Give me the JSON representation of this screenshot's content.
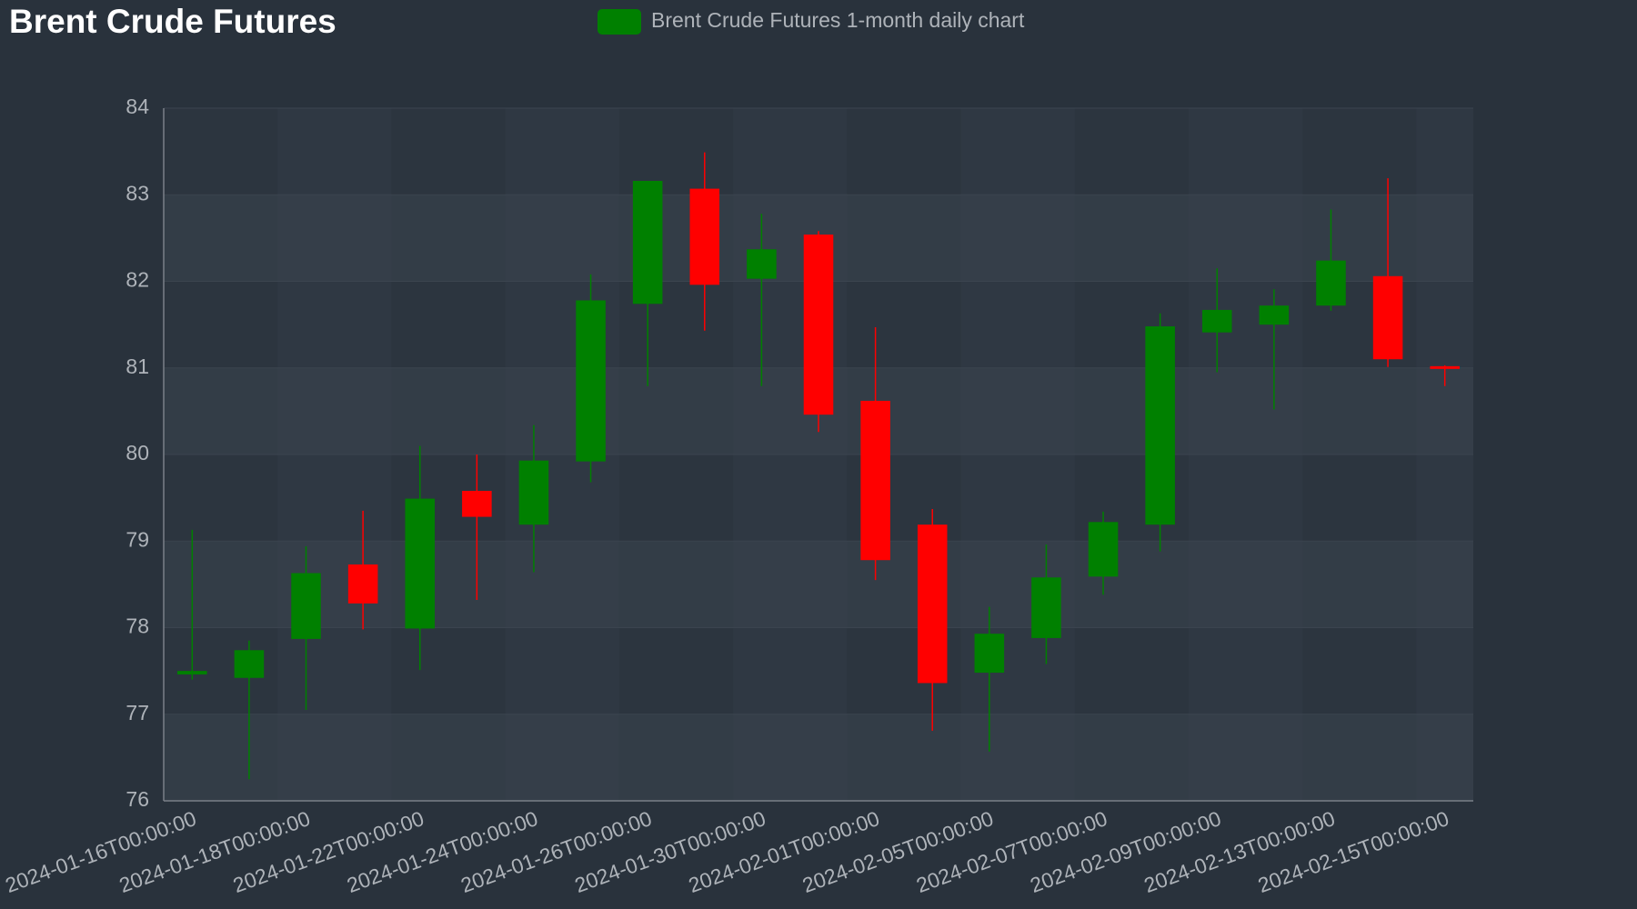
{
  "chart_data": {
    "type": "candlestick",
    "title": "Brent Crude Futures",
    "categories": [
      "2024-01-16T00:00:00",
      null,
      "2024-01-18T00:00:00",
      null,
      "2024-01-22T00:00:00",
      null,
      "2024-01-24T00:00:00",
      null,
      "2024-01-26T00:00:00",
      null,
      "2024-01-30T00:00:00",
      null,
      "2024-02-01T00:00:00",
      null,
      "2024-02-05T00:00:00",
      null,
      "2024-02-07T00:00:00",
      null,
      "2024-02-09T00:00:00",
      null,
      "2024-02-13T00:00:00",
      null,
      "2024-02-15T00:00:00"
    ],
    "series": [
      {
        "name": "Brent Crude Futures 1-month daily chart",
        "color": "#008000",
        "up_color": "#008000",
        "down_color": "#ff0000",
        "open": [
          77.46,
          77.42,
          77.87,
          78.73,
          77.99,
          79.58,
          79.19,
          79.92,
          81.74,
          83.07,
          82.03,
          82.54,
          80.62,
          79.19,
          77.48,
          77.88,
          78.59,
          79.19,
          81.41,
          81.5,
          81.72,
          82.06,
          81.02
        ],
        "high": [
          79.13,
          77.85,
          78.94,
          79.35,
          80.1,
          80.0,
          80.34,
          82.08,
          83.16,
          83.49,
          82.78,
          82.58,
          81.47,
          79.37,
          78.24,
          78.96,
          79.34,
          81.63,
          82.15,
          81.91,
          82.83,
          83.19,
          81.03
        ],
        "low": [
          77.4,
          76.25,
          77.05,
          77.98,
          77.51,
          78.32,
          78.64,
          79.68,
          80.79,
          81.43,
          80.79,
          80.26,
          78.55,
          76.81,
          76.57,
          77.58,
          78.38,
          78.88,
          80.95,
          80.52,
          81.66,
          81.01,
          80.79
        ],
        "close": [
          77.5,
          77.74,
          78.63,
          78.28,
          79.49,
          79.28,
          79.93,
          81.78,
          83.16,
          81.96,
          82.37,
          80.46,
          78.78,
          77.36,
          77.93,
          78.58,
          79.22,
          81.48,
          81.67,
          81.72,
          82.24,
          81.1,
          80.99
        ]
      }
    ],
    "ylim": [
      76,
      84
    ],
    "yticks": [
      76,
      77,
      78,
      79,
      80,
      81,
      82,
      83,
      84
    ],
    "grid": true
  }
}
